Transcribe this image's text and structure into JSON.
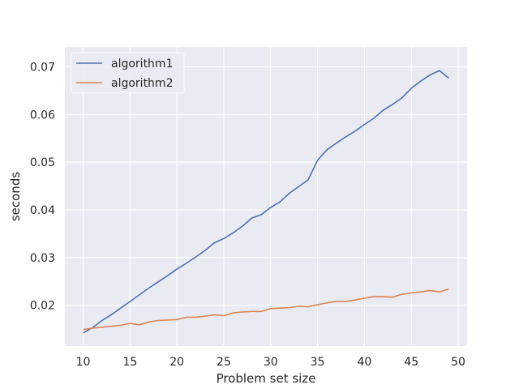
{
  "chart_data": {
    "type": "line",
    "title": "",
    "xlabel": "Problem set size",
    "ylabel": "seconds",
    "xlim": [
      8.05,
      50.95
    ],
    "ylim": [
      0.01145,
      0.07415
    ],
    "xticks": [
      10,
      15,
      20,
      25,
      30,
      35,
      40,
      45,
      50
    ],
    "yticks": [
      0.02,
      0.03,
      0.04,
      0.05,
      0.06,
      0.07
    ],
    "ytick_labels": [
      "0.02",
      "0.03",
      "0.04",
      "0.05",
      "0.06",
      "0.07"
    ],
    "grid": true,
    "legend_position": "top-left",
    "x": [
      10,
      11,
      12,
      13,
      14,
      15,
      16,
      17,
      18,
      19,
      20,
      21,
      22,
      23,
      24,
      25,
      26,
      27,
      28,
      29,
      30,
      31,
      32,
      33,
      34,
      35,
      36,
      37,
      38,
      39,
      40,
      41,
      42,
      43,
      44,
      45,
      46,
      47,
      48,
      49
    ],
    "series": [
      {
        "name": "algorithm1",
        "color": "#4c72b0",
        "values": [
          0.0142,
          0.0153,
          0.0168,
          0.018,
          0.0194,
          0.0208,
          0.0222,
          0.0236,
          0.0249,
          0.0262,
          0.0276,
          0.0288,
          0.0301,
          0.0315,
          0.0331,
          0.034,
          0.0352,
          0.0366,
          0.0383,
          0.039,
          0.0405,
          0.0417,
          0.0435,
          0.0449,
          0.0463,
          0.0504,
          0.0526,
          0.054,
          0.0553,
          0.0565,
          0.0579,
          0.0592,
          0.0609,
          0.0621,
          0.0635,
          0.0655,
          0.067,
          0.0683,
          0.0692,
          0.0676
        ]
      },
      {
        "name": "algorithm2",
        "color": "#dd8452",
        "values": [
          0.0149,
          0.0152,
          0.0154,
          0.0156,
          0.0158,
          0.0162,
          0.0159,
          0.0165,
          0.0168,
          0.0169,
          0.017,
          0.0175,
          0.0175,
          0.0177,
          0.018,
          0.0178,
          0.0184,
          0.0186,
          0.0187,
          0.0187,
          0.0193,
          0.0194,
          0.0195,
          0.0198,
          0.0197,
          0.0201,
          0.0205,
          0.0208,
          0.0208,
          0.0211,
          0.0215,
          0.0218,
          0.0218,
          0.0217,
          0.0223,
          0.0226,
          0.0228,
          0.0231,
          0.0228,
          0.0234
        ]
      }
    ]
  }
}
